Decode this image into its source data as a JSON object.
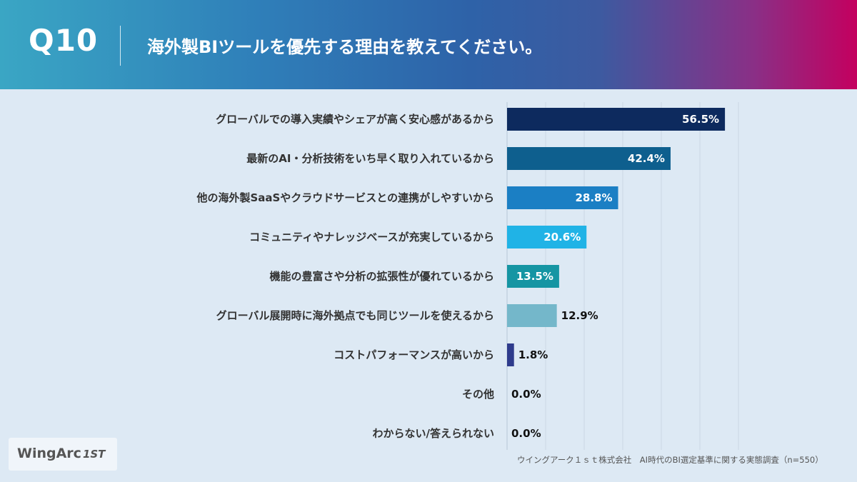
{
  "header": {
    "question_number": "Q10",
    "title": "海外製BIツールを優先する理由を教えてください。"
  },
  "chart_data": {
    "type": "bar",
    "orientation": "horizontal",
    "categories": [
      "グローバルでの導入実績やシェアが高く安心感があるから",
      "最新のAI・分析技術をいち早く取り入れているから",
      "他の海外製SaaSやクラウドサービスとの連携がしやすいから",
      "コミュニティやナレッジベースが充実しているから",
      "機能の豊富さや分析の拡張性が優れているから",
      "グローバル展開時に海外拠点でも同じツールを使えるから",
      "コストパフォーマンスが高いから",
      "その他",
      "わからない/答えられない"
    ],
    "values": [
      56.5,
      42.4,
      28.8,
      20.6,
      13.5,
      12.9,
      1.8,
      0.0,
      0.0
    ],
    "value_labels": [
      "56.5%",
      "42.4%",
      "28.8%",
      "20.6%",
      "13.5%",
      "12.9%",
      "1.8%",
      "0.0%",
      "0.0%"
    ],
    "bar_colors": [
      "#0d2a5e",
      "#0e5f8e",
      "#1b7fc4",
      "#20b3e6",
      "#1595a3",
      "#74b7ca",
      "#2e3b8c",
      "#2e3b8c",
      "#2e3b8c"
    ],
    "xlim": [
      0,
      100
    ],
    "grid": true
  },
  "source": "ウイングアーク１ｓｔ株式会社　AI時代のBI選定基準に関する実態調査（n=550）",
  "logo": {
    "text": "WingArc",
    "mark": "1ST"
  }
}
